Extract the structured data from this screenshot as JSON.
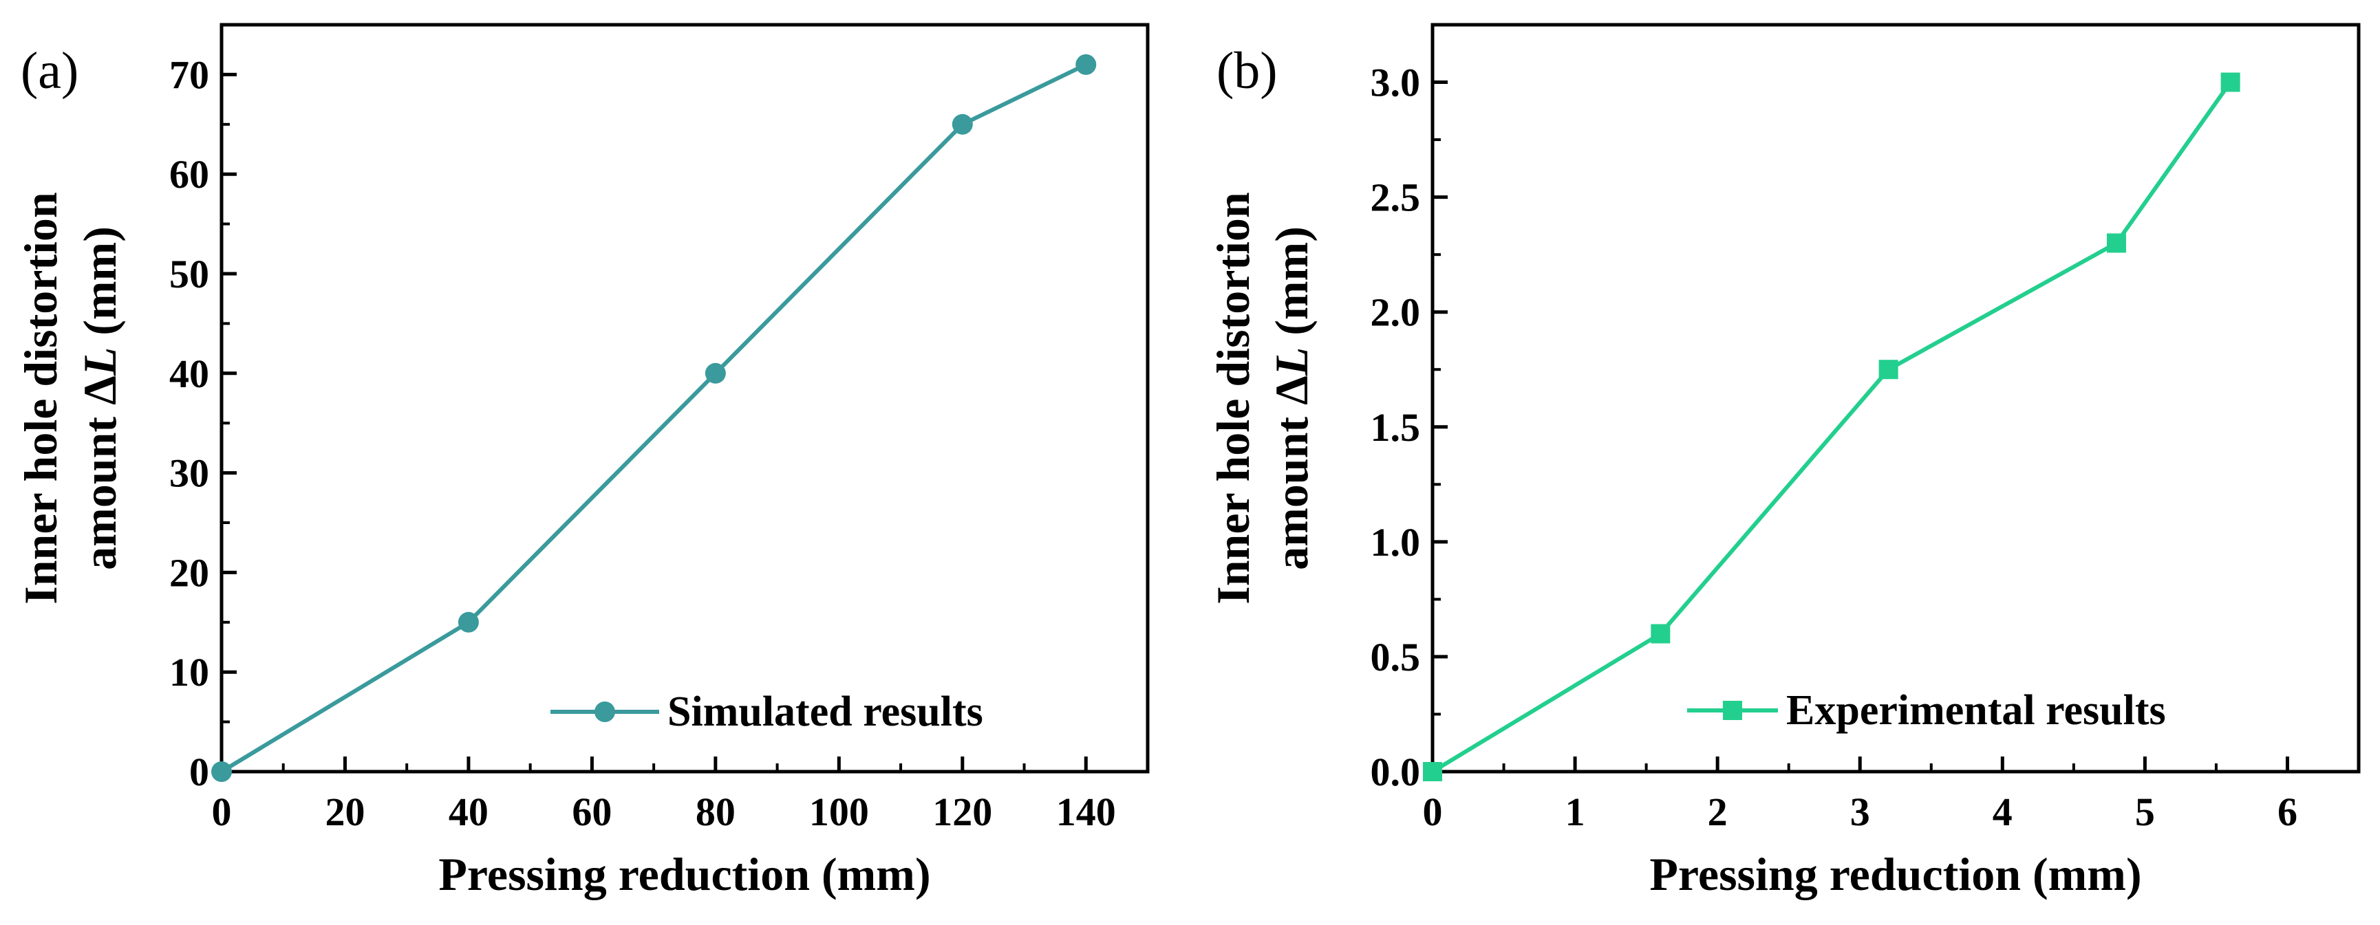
{
  "chart_data": [
    {
      "type": "line",
      "panel_label": "(a)",
      "xlabel": "Pressing reduction (mm)",
      "ylabel_line1": "Inner hole distortion",
      "ylabel_line2_prefix": "amount Δ",
      "ylabel_line2_var": "L",
      "ylabel_line2_suffix": " (mm)",
      "xlim": [
        0,
        150
      ],
      "ylim": [
        0,
        75
      ],
      "xticks": [
        0,
        20,
        40,
        60,
        80,
        100,
        120,
        140
      ],
      "yticks": [
        0,
        10,
        20,
        30,
        40,
        50,
        60,
        70
      ],
      "xtick_labels": [
        "0",
        "20",
        "40",
        "60",
        "80",
        "100",
        "120",
        "140"
      ],
      "ytick_labels": [
        "0",
        "10",
        "20",
        "30",
        "40",
        "50",
        "60",
        "70"
      ],
      "marker": "circle",
      "legend_position": "bottom-right",
      "series": [
        {
          "name": "Simulated results",
          "color": "#3a9a9c",
          "x": [
            0,
            40,
            80,
            120,
            140
          ],
          "y": [
            0,
            15,
            40,
            65,
            71
          ]
        }
      ]
    },
    {
      "type": "line",
      "panel_label": "(b)",
      "xlabel": "Pressing reduction (mm)",
      "ylabel_line1": "Inner hole distortion",
      "ylabel_line2_prefix": "amount Δ",
      "ylabel_line2_var": "L",
      "ylabel_line2_suffix": " (mm)",
      "xlim": [
        0,
        6.5
      ],
      "ylim": [
        0,
        3.25
      ],
      "xticks": [
        0,
        1,
        2,
        3,
        4,
        5,
        6
      ],
      "yticks": [
        0,
        0.5,
        1.0,
        1.5,
        2.0,
        2.5,
        3.0
      ],
      "xtick_labels": [
        "0",
        "1",
        "2",
        "3",
        "4",
        "5",
        "6"
      ],
      "ytick_labels": [
        "0.0",
        "0.5",
        "1.0",
        "1.5",
        "2.0",
        "2.5",
        "3.0"
      ],
      "marker": "square",
      "legend_position": "bottom-right",
      "series": [
        {
          "name": "Experimental results",
          "color": "#23cf8e",
          "x": [
            0,
            1.6,
            3.2,
            4.8,
            5.6
          ],
          "y": [
            0,
            0.6,
            1.75,
            2.3,
            3.0
          ]
        }
      ]
    }
  ]
}
